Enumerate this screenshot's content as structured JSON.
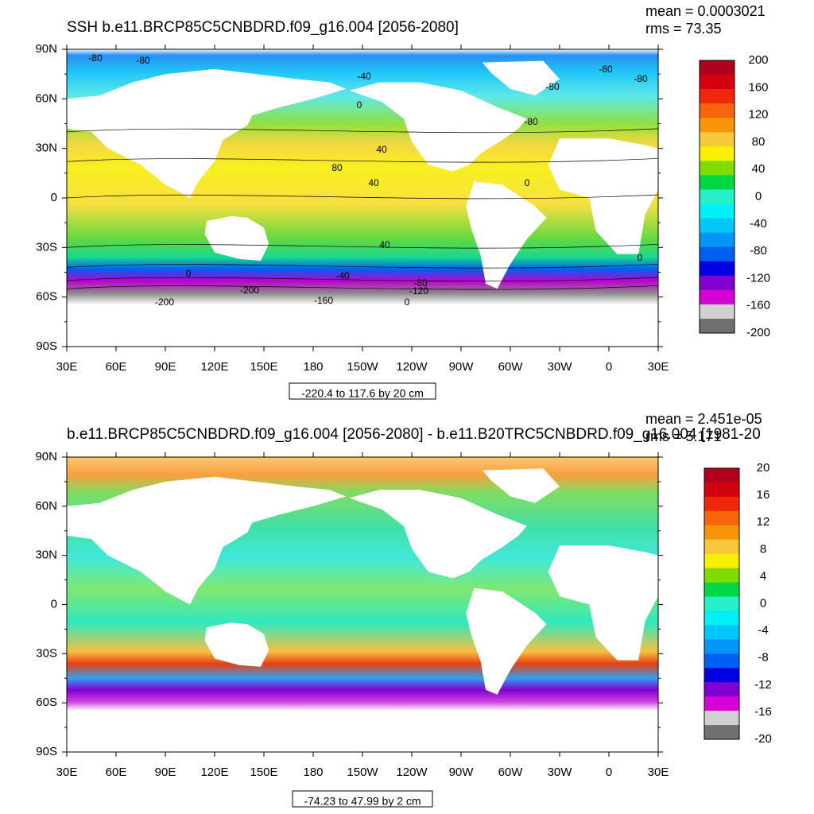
{
  "chart_data": [
    {
      "type": "heatmap",
      "title": "SSH b.e11.BRCP85C5CNBDRD.f09_g16.004 [2056-2080]",
      "stats": [
        "mean = 0.0003021",
        "rms = 73.35"
      ],
      "x_tick_labels": [
        "30E",
        "60E",
        "90E",
        "120E",
        "150E",
        "180",
        "150W",
        "120W",
        "90W",
        "60W",
        "30W",
        "0",
        "30E"
      ],
      "y_tick_labels": [
        "90N",
        "60N",
        "30N",
        "0",
        "30S",
        "60S",
        "90S"
      ],
      "y_ticks": [
        90,
        60,
        30,
        0,
        -30,
        -60,
        -90
      ],
      "ylim": [
        -90,
        90
      ],
      "colorbar": {
        "levels": [
          200,
          160,
          120,
          80,
          40,
          0,
          -40,
          -80,
          -120,
          -160,
          -200
        ],
        "label_values": [
          "200",
          "160",
          "120",
          "80",
          "40",
          "0",
          "-40",
          "-80",
          "-120",
          "-160",
          "-200"
        ],
        "colors": [
          "#b0001c",
          "#d40010",
          "#f0280a",
          "#f8640a",
          "#f8960a",
          "#f8c83c",
          "#f8f000",
          "#80dc00",
          "#00d740",
          "#28f0c8",
          "#00f0f8",
          "#00c8f8",
          "#0096f8",
          "#0060f0",
          "#0000e0",
          "#8000d0",
          "#d400d4",
          "#d0d0d0",
          "#707070"
        ]
      },
      "contour_labels": [
        "-80",
        "-80",
        "-40",
        "0",
        "40",
        "-80",
        "-80",
        "-80",
        "-80",
        "80",
        "40",
        "0",
        "40",
        "0",
        "0",
        "-40",
        "-80",
        "-120",
        "-200",
        "-200",
        "-160",
        "0"
      ],
      "range_note": "-220.4 to 117.6 by 20 cm"
    },
    {
      "type": "heatmap",
      "title": "b.e11.BRCP85C5CNBDRD.f09_g16.004 [2056-2080] - b.e11.B20TRC5CNBDRD.f09_g16.004 [1981-20",
      "stats": [
        "mean = 2.451e-05",
        "rms = 5.171"
      ],
      "x_tick_labels": [
        "30E",
        "60E",
        "90E",
        "120E",
        "150E",
        "180",
        "150W",
        "120W",
        "90W",
        "60W",
        "30W",
        "0",
        "30E"
      ],
      "y_tick_labels": [
        "90N",
        "60N",
        "30N",
        "0",
        "30S",
        "60S",
        "90S"
      ],
      "y_ticks": [
        90,
        60,
        30,
        0,
        -30,
        -60,
        -90
      ],
      "ylim": [
        -90,
        90
      ],
      "colorbar": {
        "levels": [
          20,
          16,
          12,
          8,
          4,
          0,
          -4,
          -8,
          -12,
          -16,
          -20
        ],
        "label_values": [
          "20",
          "16",
          "12",
          "8",
          "4",
          "0",
          "-4",
          "-8",
          "-12",
          "-16",
          "-20"
        ],
        "colors": [
          "#b0001c",
          "#d40010",
          "#f0280a",
          "#f8640a",
          "#f8960a",
          "#f8c83c",
          "#f8f000",
          "#80dc00",
          "#00d740",
          "#28f0c8",
          "#00f0f8",
          "#00c8f8",
          "#0096f8",
          "#0060f0",
          "#0000e0",
          "#8000d0",
          "#d400d4",
          "#d0d0d0",
          "#707070"
        ]
      },
      "range_note": "-74.23 to 47.99 by 2 cm"
    }
  ]
}
